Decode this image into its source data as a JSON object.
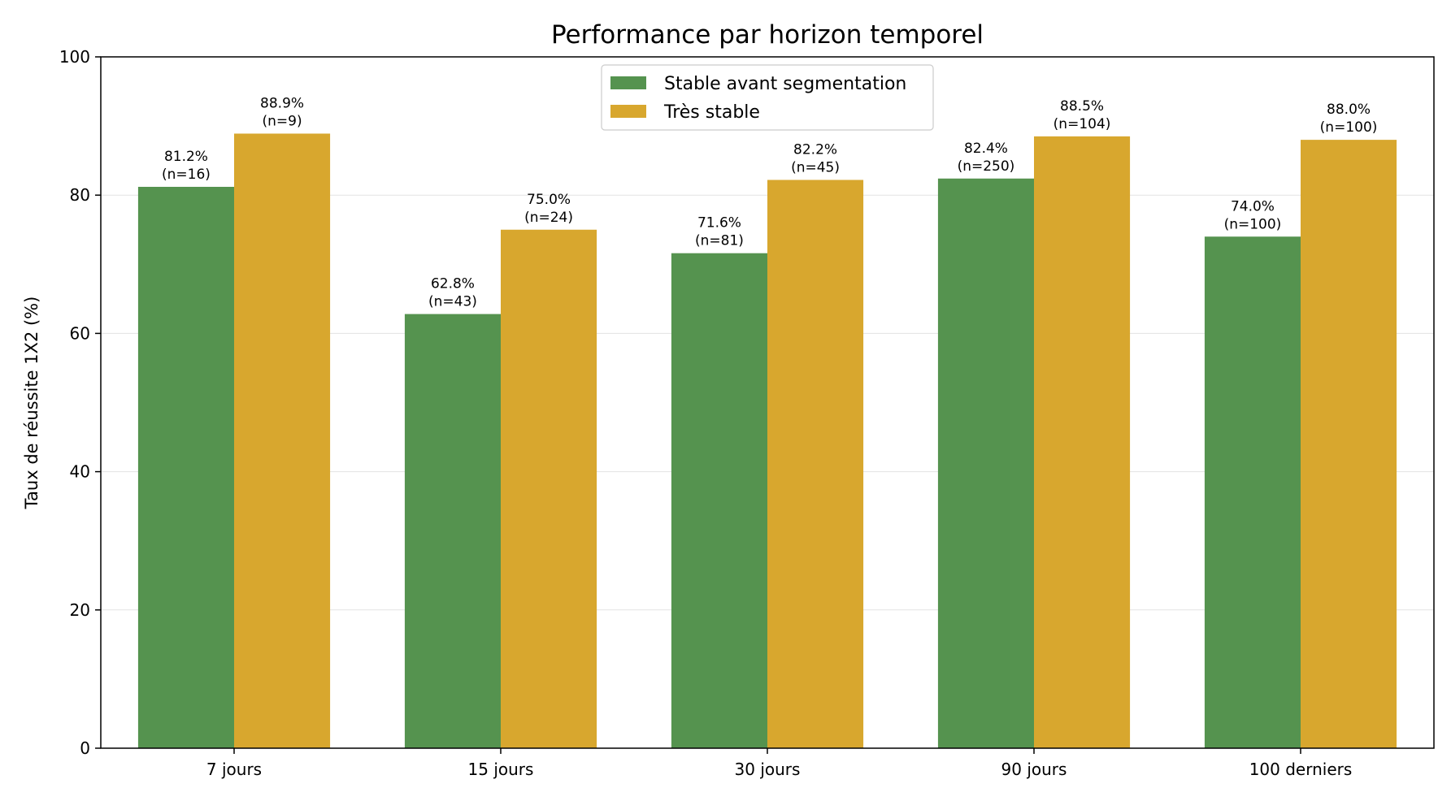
{
  "chart_data": {
    "type": "bar",
    "title": "Performance par horizon temporel",
    "xlabel": "",
    "ylabel": "Taux de réussite 1X2 (%)",
    "ylim": [
      0,
      100
    ],
    "yticks": [
      0,
      20,
      40,
      60,
      80,
      100
    ],
    "grid": "y",
    "legend_position": "top-center",
    "categories": [
      "7 jours",
      "15 jours",
      "30 jours",
      "90 jours",
      "100 derniers"
    ],
    "series": [
      {
        "name": "Stable avant segmentation",
        "color": "#55934f",
        "values": [
          81.2,
          62.8,
          71.6,
          82.4,
          74.0
        ],
        "labels": [
          "81.2%",
          "62.8%",
          "71.6%",
          "82.4%",
          "74.0%"
        ],
        "n_labels": [
          "(n=16)",
          "(n=43)",
          "(n=81)",
          "(n=250)",
          "(n=100)"
        ]
      },
      {
        "name": "Très stable",
        "color": "#d8a72e",
        "values": [
          88.9,
          75.0,
          82.2,
          88.5,
          88.0
        ],
        "labels": [
          "88.9%",
          "75.0%",
          "82.2%",
          "88.5%",
          "88.0%"
        ],
        "n_labels": [
          "(n=9)",
          "(n=24)",
          "(n=45)",
          "(n=104)",
          "(n=100)"
        ]
      }
    ]
  }
}
